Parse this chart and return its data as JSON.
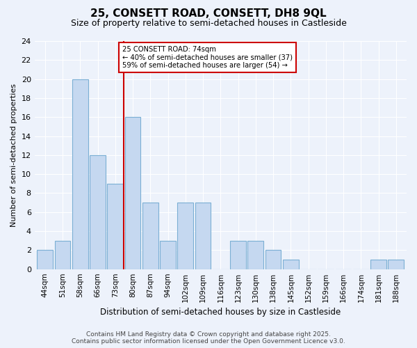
{
  "title": "25, CONSETT ROAD, CONSETT, DH8 9QL",
  "subtitle": "Size of property relative to semi-detached houses in Castleside",
  "xlabel": "Distribution of semi-detached houses by size in Castleside",
  "ylabel": "Number of semi-detached properties",
  "categories": [
    "44sqm",
    "51sqm",
    "58sqm",
    "66sqm",
    "73sqm",
    "80sqm",
    "87sqm",
    "94sqm",
    "102sqm",
    "109sqm",
    "116sqm",
    "123sqm",
    "130sqm",
    "138sqm",
    "145sqm",
    "152sqm",
    "159sqm",
    "166sqm",
    "174sqm",
    "181sqm",
    "188sqm"
  ],
  "values": [
    2,
    3,
    20,
    12,
    9,
    16,
    7,
    3,
    7,
    7,
    0,
    3,
    3,
    2,
    1,
    0,
    0,
    0,
    0,
    1,
    1
  ],
  "bar_color": "#c5d8f0",
  "bar_edgecolor": "#7bafd4",
  "vline_x": 4.5,
  "vline_color": "#cc0000",
  "annotation_title": "25 CONSETT ROAD: 74sqm",
  "annotation_line1": "← 40% of semi-detached houses are smaller (37)",
  "annotation_line2": "59% of semi-detached houses are larger (54) →",
  "annotation_box_color": "#cc0000",
  "ylim": [
    0,
    24
  ],
  "yticks": [
    0,
    2,
    4,
    6,
    8,
    10,
    12,
    14,
    16,
    18,
    20,
    22,
    24
  ],
  "footer1": "Contains HM Land Registry data © Crown copyright and database right 2025.",
  "footer2": "Contains public sector information licensed under the Open Government Licence v3.0.",
  "bg_color": "#edf2fb",
  "grid_color": "#ffffff"
}
